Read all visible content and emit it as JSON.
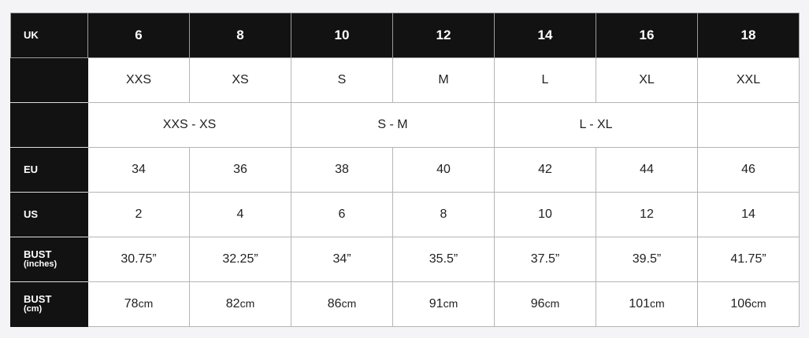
{
  "rows": {
    "uk": {
      "label": "UK",
      "values": [
        "6",
        "8",
        "10",
        "12",
        "14",
        "16",
        "18"
      ]
    },
    "alpha": {
      "values": [
        "XXS",
        "XS",
        "S",
        "M",
        "L",
        "XL",
        "XXL"
      ]
    },
    "ranges": {
      "values": [
        "XXS - XS",
        "S - M",
        "L - XL",
        ""
      ]
    },
    "eu": {
      "label": "EU",
      "values": [
        "34",
        "36",
        "38",
        "40",
        "42",
        "44",
        "46"
      ]
    },
    "us": {
      "label": "US",
      "values": [
        "2",
        "4",
        "6",
        "8",
        "10",
        "12",
        "14"
      ]
    },
    "bust_in": {
      "label": "BUST",
      "sublabel": "(inches)",
      "values": [
        "30.75”",
        "32.25”",
        "34”",
        "35.5”",
        "37.5”",
        "39.5”",
        "41.75”"
      ]
    },
    "bust_cm": {
      "label": "BUST",
      "sublabel": "(cm)",
      "values": [
        "78",
        "82",
        "86",
        "91",
        "96",
        "101",
        "106"
      ],
      "unit": "cm"
    }
  }
}
